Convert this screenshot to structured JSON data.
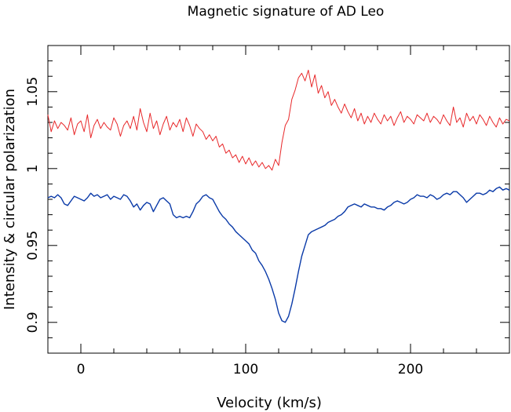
{
  "chart_data": {
    "type": "line",
    "title": "Magnetic signature of AD Leo",
    "xlabel": "Velocity (km/s)",
    "ylabel": "Intensity & circular polarization",
    "xlim": [
      -20,
      260
    ],
    "ylim": [
      0.88,
      1.08
    ],
    "x_ticks": [
      0,
      100,
      200
    ],
    "x_tick_labels": [
      "0",
      "100",
      "200"
    ],
    "y_ticks": [
      0.9,
      0.95,
      1.0,
      1.05
    ],
    "y_tick_labels": [
      "0.9",
      "0.95",
      "1",
      "1.05"
    ],
    "grid": false,
    "legend": "none",
    "series": [
      {
        "color": "#e8282a",
        "x": [
          -20,
          -18,
          -16,
          -14,
          -12,
          -10,
          -8,
          -6,
          -4,
          -2,
          0,
          2,
          4,
          6,
          8,
          10,
          12,
          14,
          16,
          18,
          20,
          22,
          24,
          26,
          28,
          30,
          32,
          34,
          36,
          38,
          40,
          42,
          44,
          46,
          48,
          50,
          52,
          54,
          56,
          58,
          60,
          62,
          64,
          66,
          68,
          70,
          72,
          74,
          76,
          78,
          80,
          82,
          84,
          86,
          88,
          90,
          92,
          94,
          96,
          98,
          100,
          102,
          104,
          106,
          108,
          110,
          112,
          114,
          116,
          118,
          120,
          122,
          124,
          126,
          128,
          130,
          132,
          134,
          136,
          138,
          140,
          142,
          144,
          146,
          148,
          150,
          152,
          154,
          156,
          158,
          160,
          162,
          164,
          166,
          168,
          170,
          172,
          174,
          176,
          178,
          180,
          182,
          184,
          186,
          188,
          190,
          192,
          194,
          196,
          198,
          200,
          202,
          204,
          206,
          208,
          210,
          212,
          214,
          216,
          218,
          220,
          222,
          224,
          226,
          228,
          230,
          232,
          234,
          236,
          238,
          240,
          242,
          244,
          246,
          248,
          250,
          252,
          254,
          256,
          258,
          260
        ],
        "y": [
          1.035,
          1.024,
          1.031,
          1.026,
          1.03,
          1.028,
          1.025,
          1.033,
          1.022,
          1.029,
          1.031,
          1.024,
          1.035,
          1.02,
          1.028,
          1.032,
          1.026,
          1.03,
          1.027,
          1.025,
          1.033,
          1.029,
          1.021,
          1.028,
          1.031,
          1.026,
          1.034,
          1.025,
          1.039,
          1.03,
          1.024,
          1.036,
          1.026,
          1.031,
          1.022,
          1.029,
          1.034,
          1.025,
          1.03,
          1.027,
          1.032,
          1.024,
          1.033,
          1.028,
          1.021,
          1.029,
          1.026,
          1.024,
          1.019,
          1.022,
          1.018,
          1.021,
          1.014,
          1.016,
          1.01,
          1.012,
          1.007,
          1.009,
          1.004,
          1.008,
          1.003,
          1.007,
          1.002,
          1.005,
          1.001,
          1.004,
          1.0,
          1.002,
          0.999,
          1.006,
          1.002,
          1.017,
          1.028,
          1.032,
          1.045,
          1.051,
          1.059,
          1.062,
          1.057,
          1.064,
          1.053,
          1.061,
          1.049,
          1.054,
          1.046,
          1.05,
          1.041,
          1.045,
          1.04,
          1.036,
          1.042,
          1.037,
          1.033,
          1.039,
          1.031,
          1.036,
          1.029,
          1.034,
          1.03,
          1.036,
          1.032,
          1.029,
          1.035,
          1.031,
          1.034,
          1.028,
          1.033,
          1.037,
          1.03,
          1.034,
          1.032,
          1.029,
          1.035,
          1.033,
          1.031,
          1.036,
          1.03,
          1.034,
          1.032,
          1.029,
          1.035,
          1.031,
          1.028,
          1.04,
          1.03,
          1.033,
          1.027,
          1.036,
          1.031,
          1.034,
          1.029,
          1.035,
          1.032,
          1.028,
          1.034,
          1.03,
          1.027,
          1.033,
          1.029,
          1.032,
          1.031
        ]
      },
      {
        "color": "#0a3aa8",
        "x": [
          -20,
          -18,
          -16,
          -14,
          -12,
          -10,
          -8,
          -6,
          -4,
          -2,
          0,
          2,
          4,
          6,
          8,
          10,
          12,
          14,
          16,
          18,
          20,
          22,
          24,
          26,
          28,
          30,
          32,
          34,
          36,
          38,
          40,
          42,
          44,
          46,
          48,
          50,
          52,
          54,
          56,
          58,
          60,
          62,
          64,
          66,
          68,
          70,
          72,
          74,
          76,
          78,
          80,
          82,
          84,
          86,
          88,
          90,
          92,
          94,
          96,
          98,
          100,
          102,
          104,
          106,
          108,
          110,
          112,
          114,
          116,
          118,
          120,
          122,
          124,
          126,
          128,
          130,
          132,
          134,
          136,
          138,
          140,
          142,
          144,
          146,
          148,
          150,
          152,
          154,
          156,
          158,
          160,
          162,
          164,
          166,
          168,
          170,
          172,
          174,
          176,
          178,
          180,
          182,
          184,
          186,
          188,
          190,
          192,
          194,
          196,
          198,
          200,
          202,
          204,
          206,
          208,
          210,
          212,
          214,
          216,
          218,
          220,
          222,
          224,
          226,
          228,
          230,
          232,
          234,
          236,
          238,
          240,
          242,
          244,
          246,
          248,
          250,
          252,
          254,
          256,
          258,
          260
        ],
        "y": [
          0.981,
          0.982,
          0.981,
          0.983,
          0.981,
          0.977,
          0.976,
          0.979,
          0.982,
          0.981,
          0.98,
          0.979,
          0.981,
          0.984,
          0.982,
          0.983,
          0.981,
          0.982,
          0.983,
          0.98,
          0.982,
          0.981,
          0.98,
          0.983,
          0.982,
          0.979,
          0.975,
          0.977,
          0.973,
          0.976,
          0.978,
          0.977,
          0.972,
          0.976,
          0.98,
          0.981,
          0.979,
          0.977,
          0.97,
          0.968,
          0.969,
          0.968,
          0.969,
          0.968,
          0.972,
          0.977,
          0.979,
          0.982,
          0.983,
          0.981,
          0.98,
          0.976,
          0.972,
          0.969,
          0.967,
          0.964,
          0.962,
          0.959,
          0.957,
          0.955,
          0.953,
          0.951,
          0.947,
          0.945,
          0.94,
          0.937,
          0.933,
          0.928,
          0.922,
          0.915,
          0.906,
          0.901,
          0.9,
          0.904,
          0.912,
          0.922,
          0.933,
          0.943,
          0.95,
          0.957,
          0.959,
          0.96,
          0.961,
          0.962,
          0.963,
          0.965,
          0.966,
          0.967,
          0.969,
          0.97,
          0.972,
          0.975,
          0.976,
          0.977,
          0.976,
          0.975,
          0.977,
          0.976,
          0.975,
          0.975,
          0.974,
          0.974,
          0.973,
          0.975,
          0.976,
          0.978,
          0.979,
          0.978,
          0.977,
          0.978,
          0.98,
          0.981,
          0.983,
          0.982,
          0.982,
          0.981,
          0.983,
          0.982,
          0.98,
          0.981,
          0.983,
          0.984,
          0.983,
          0.985,
          0.985,
          0.983,
          0.981,
          0.978,
          0.98,
          0.982,
          0.984,
          0.984,
          0.983,
          0.984,
          0.986,
          0.985,
          0.987,
          0.988,
          0.986,
          0.987,
          0.986
        ]
      }
    ]
  }
}
